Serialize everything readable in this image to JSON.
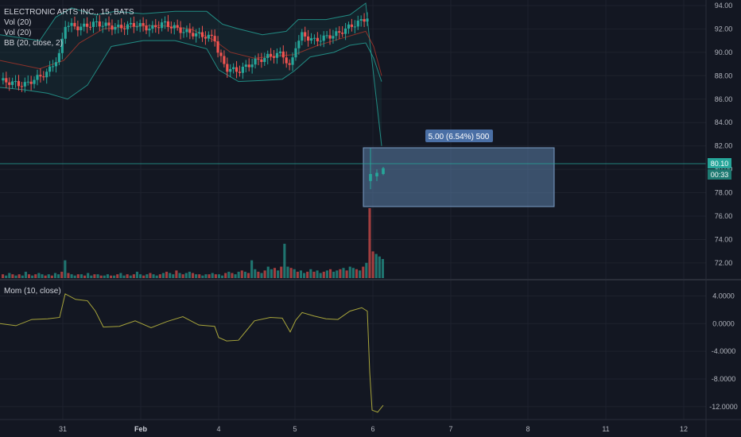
{
  "chart_data": [
    {
      "type": "candlestick",
      "title": "ELECTRONIC ARTS INC., 15, BATS",
      "indicators": [
        "Vol (20)",
        "Vol (20)",
        "BB (20, close, 2)"
      ],
      "y_ticks": [
        "94.00",
        "92.00",
        "90.00",
        "88.00",
        "86.00",
        "84.00",
        "82.00",
        "80.00",
        "78.00",
        "76.00",
        "74.00",
        "72.00"
      ],
      "ylim": [
        70.5,
        94.2
      ],
      "x_ticks": [
        "31",
        "Feb",
        "4",
        "5",
        "6",
        "7",
        "8",
        "11",
        "12"
      ],
      "last_price": "80.10",
      "countdown": "00:33",
      "measure_label": "5.00 (6.54%) 500",
      "measure_range": [
        76.5,
        81.6
      ],
      "close_path": [
        [
          0,
          87.6
        ],
        [
          0.03,
          87.2
        ],
        [
          0.06,
          88.3
        ],
        [
          0.075,
          89.8
        ],
        [
          0.082,
          92.4
        ],
        [
          0.1,
          92.1
        ],
        [
          0.12,
          92.5
        ],
        [
          0.14,
          92.2
        ],
        [
          0.15,
          92.1
        ],
        [
          0.17,
          92.4
        ],
        [
          0.19,
          92.0
        ],
        [
          0.205,
          92.5
        ],
        [
          0.22,
          92.1
        ],
        [
          0.23,
          91.8
        ],
        [
          0.25,
          91.5
        ],
        [
          0.27,
          91.2
        ],
        [
          0.275,
          89.8
        ],
        [
          0.285,
          88.6
        ],
        [
          0.3,
          88.4
        ],
        [
          0.32,
          89.2
        ],
        [
          0.34,
          89.7
        ],
        [
          0.355,
          89.9
        ],
        [
          0.365,
          88.6
        ],
        [
          0.372,
          90.6
        ],
        [
          0.38,
          91.5
        ],
        [
          0.395,
          91.0
        ],
        [
          0.41,
          91.3
        ],
        [
          0.425,
          91.6
        ],
        [
          0.44,
          92.2
        ],
        [
          0.455,
          92.7
        ],
        [
          0.462,
          93.0
        ],
        [
          0.465,
          79.1
        ],
        [
          0.475,
          79.4
        ],
        [
          0.482,
          80.1
        ]
      ],
      "bb_upper": [
        [
          0,
          91.5
        ],
        [
          0.05,
          91.0
        ],
        [
          0.07,
          93.0
        ],
        [
          0.09,
          93.8
        ],
        [
          0.12,
          93.2
        ],
        [
          0.145,
          93.5
        ],
        [
          0.18,
          93.3
        ],
        [
          0.22,
          93.5
        ],
        [
          0.26,
          93.5
        ],
        [
          0.28,
          92.4
        ],
        [
          0.3,
          92.0
        ],
        [
          0.33,
          91.5
        ],
        [
          0.36,
          91.8
        ],
        [
          0.375,
          92.8
        ],
        [
          0.41,
          92.8
        ],
        [
          0.44,
          93.2
        ],
        [
          0.46,
          94.2
        ],
        [
          0.465,
          91.0
        ],
        [
          0.48,
          82.0
        ]
      ],
      "bb_lower": [
        [
          0,
          87.0
        ],
        [
          0.03,
          86.8
        ],
        [
          0.06,
          86.5
        ],
        [
          0.075,
          86.2
        ],
        [
          0.085,
          86.0
        ],
        [
          0.11,
          87.2
        ],
        [
          0.14,
          90.5
        ],
        [
          0.18,
          91.0
        ],
        [
          0.22,
          91.0
        ],
        [
          0.26,
          90.3
        ],
        [
          0.275,
          88.5
        ],
        [
          0.3,
          87.5
        ],
        [
          0.33,
          87.6
        ],
        [
          0.355,
          87.7
        ],
        [
          0.37,
          88.4
        ],
        [
          0.39,
          89.6
        ],
        [
          0.42,
          90.0
        ],
        [
          0.44,
          90.6
        ],
        [
          0.46,
          90.8
        ],
        [
          0.47,
          89.5
        ],
        [
          0.48,
          87.5
        ]
      ],
      "bb_basis": [
        [
          0,
          89.3
        ],
        [
          0.05,
          88.6
        ],
        [
          0.08,
          89.3
        ],
        [
          0.1,
          90.8
        ],
        [
          0.13,
          92.0
        ],
        [
          0.16,
          92.2
        ],
        [
          0.2,
          92.3
        ],
        [
          0.24,
          92.0
        ],
        [
          0.27,
          91.0
        ],
        [
          0.29,
          90.0
        ],
        [
          0.32,
          89.5
        ],
        [
          0.35,
          89.7
        ],
        [
          0.37,
          89.8
        ],
        [
          0.4,
          90.6
        ],
        [
          0.43,
          91.2
        ],
        [
          0.46,
          91.8
        ],
        [
          0.47,
          90.5
        ],
        [
          0.48,
          88.0
        ]
      ],
      "volume_bars": [
        3,
        2,
        4,
        3,
        2,
        3,
        2,
        5,
        3,
        2,
        3,
        4,
        3,
        2,
        3,
        2,
        4,
        3,
        5,
        14,
        4,
        3,
        2,
        3,
        3,
        2,
        4,
        2,
        3,
        3,
        2,
        2,
        3,
        2,
        2,
        3,
        4,
        2,
        3,
        2,
        3,
        5,
        3,
        2,
        3,
        4,
        3,
        2,
        3,
        4,
        5,
        4,
        3,
        6,
        4,
        3,
        4,
        5,
        4,
        3,
        3,
        2,
        3,
        3,
        4,
        3,
        3,
        2,
        4,
        5,
        4,
        3,
        5,
        6,
        5,
        4,
        14,
        7,
        5,
        4,
        6,
        9,
        7,
        8,
        6,
        9,
        27,
        9,
        8,
        7,
        5,
        6,
        4,
        5,
        7,
        5,
        6,
        4,
        5,
        6,
        7,
        5,
        6,
        7,
        8,
        6,
        9,
        8,
        7,
        6,
        9,
        12,
        55,
        21,
        19,
        17,
        15
      ]
    },
    {
      "type": "line",
      "title": "Mom (10, close)",
      "y_ticks": [
        "4.0000",
        "0.0000",
        "-4.0000",
        "-8.0000",
        "-12.0000"
      ],
      "ylim": [
        -13.4,
        5.2
      ],
      "values": [
        [
          0,
          0.0
        ],
        [
          0.02,
          -0.3
        ],
        [
          0.04,
          0.6
        ],
        [
          0.06,
          0.7
        ],
        [
          0.075,
          0.9
        ],
        [
          0.082,
          4.3
        ],
        [
          0.095,
          3.5
        ],
        [
          0.11,
          3.3
        ],
        [
          0.12,
          1.8
        ],
        [
          0.13,
          -0.5
        ],
        [
          0.15,
          -0.4
        ],
        [
          0.17,
          0.4
        ],
        [
          0.19,
          -0.6
        ],
        [
          0.21,
          0.3
        ],
        [
          0.23,
          1.0
        ],
        [
          0.25,
          -0.2
        ],
        [
          0.27,
          -0.4
        ],
        [
          0.275,
          -2.0
        ],
        [
          0.285,
          -2.5
        ],
        [
          0.3,
          -2.4
        ],
        [
          0.31,
          -1.0
        ],
        [
          0.32,
          0.4
        ],
        [
          0.34,
          0.9
        ],
        [
          0.355,
          0.8
        ],
        [
          0.365,
          -1.2
        ],
        [
          0.372,
          0.5
        ],
        [
          0.38,
          1.6
        ],
        [
          0.395,
          1.1
        ],
        [
          0.41,
          0.7
        ],
        [
          0.425,
          0.6
        ],
        [
          0.44,
          1.8
        ],
        [
          0.455,
          2.3
        ],
        [
          0.462,
          1.8
        ],
        [
          0.465,
          -7.0
        ],
        [
          0.468,
          -12.5
        ],
        [
          0.475,
          -12.8
        ],
        [
          0.482,
          -11.8
        ]
      ]
    }
  ]
}
